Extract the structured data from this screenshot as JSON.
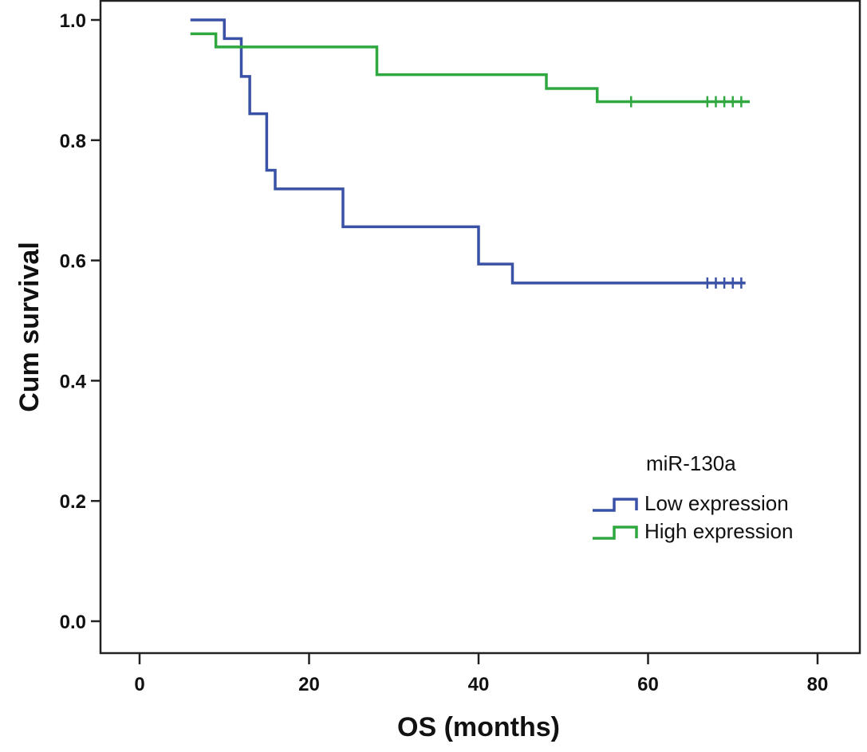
{
  "chart_data": {
    "type": "line",
    "subtype": "kaplan-meier step",
    "xlabel": "OS (months)",
    "ylabel": "Cum survival",
    "xlim": [
      -4,
      85
    ],
    "ylim": [
      -0.06,
      1.034
    ],
    "xticks": [
      0,
      20,
      40,
      60,
      80
    ],
    "xtick_labels": [
      "0",
      "20",
      "40",
      "60",
      "80"
    ],
    "yticks": [
      0.0,
      0.2,
      0.4,
      0.6,
      0.8,
      1.0
    ],
    "ytick_labels": [
      "0.0",
      "0.2",
      "0.4",
      "0.6",
      "0.8",
      "1.0"
    ],
    "grid": false,
    "legend": {
      "title": "miR-130a",
      "placement": "bottom-right"
    },
    "series": [
      {
        "name": "Low expression",
        "color": "#3a52a5",
        "steps": [
          [
            6,
            1.0
          ],
          [
            10,
            0.969
          ],
          [
            12,
            0.906
          ],
          [
            13,
            0.844
          ],
          [
            15,
            0.75
          ],
          [
            16,
            0.719
          ],
          [
            24,
            0.656
          ],
          [
            40,
            0.594
          ],
          [
            44,
            0.5625
          ]
        ],
        "end_x": 71.5,
        "censored": [
          67,
          68,
          69,
          70,
          71
        ]
      },
      {
        "name": "High expression",
        "color": "#2fa83f",
        "steps": [
          [
            6,
            0.977
          ],
          [
            9,
            0.955
          ],
          [
            28,
            0.909
          ],
          [
            48,
            0.886
          ],
          [
            54,
            0.864
          ]
        ],
        "end_x": 72,
        "censored": [
          58,
          67,
          68,
          69,
          70,
          71
        ]
      }
    ]
  }
}
